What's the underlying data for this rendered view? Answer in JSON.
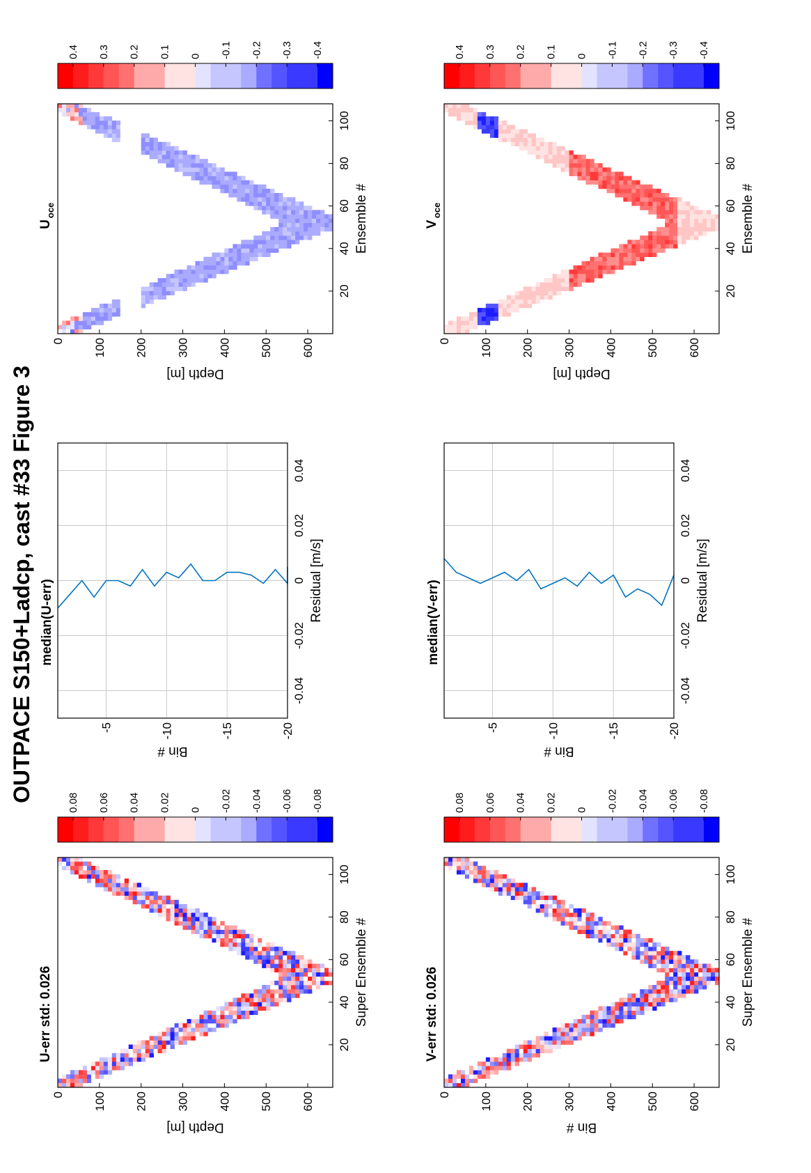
{
  "figure": {
    "title": "OUTPACE S150+Ladcp, cast #33  Figure 3"
  },
  "colors": {
    "red": "#ff0000",
    "blue": "#0000ff",
    "line": "#0072bd",
    "grid": "#c8c8c8"
  },
  "chart_data": [
    {
      "id": "u-err",
      "type": "heatmap",
      "title": "U-err std: 0.026",
      "xlabel": "Super Ensemble #",
      "ylabel": "Depth [m]",
      "xlim": [
        0,
        108
      ],
      "ylim": [
        0,
        660
      ],
      "xticks": [
        "20",
        "40",
        "60",
        "80",
        "100"
      ],
      "yticks": [
        "0",
        "100",
        "200",
        "300",
        "400",
        "500",
        "600"
      ],
      "colorbar": {
        "range": [
          -0.09,
          0.09
        ],
        "ticks": [
          "0.08",
          "0.06",
          "0.04",
          "0.02",
          "0",
          "-0.02",
          "-0.04",
          "-0.06",
          "-0.08"
        ]
      },
      "pattern": "V-shaped down/up cast, noisy residuals between -0.09 and 0.09"
    },
    {
      "id": "median-u",
      "type": "line",
      "title": "median(U-err)",
      "xlabel": "Residual [m/s]",
      "ylabel": "Bin #",
      "xlim": [
        -0.05,
        0.05
      ],
      "ylim": [
        -20,
        -1
      ],
      "xticks": [
        "-0.04",
        "-0.02",
        "0",
        "0.02",
        "0.04"
      ],
      "yticks": [
        "-5",
        "-10",
        "-15",
        "-20"
      ],
      "series": [
        {
          "x": [
            -0.01,
            -0.005,
            0.0,
            -0.006,
            0.0,
            0.0,
            -0.002,
            0.004,
            -0.002,
            0.003,
            0.001,
            0.006,
            0.0,
            0.0,
            0.003,
            0.003,
            0.002,
            -0.001,
            0.004,
            -0.001,
            0.005
          ],
          "y": [
            -1,
            -2,
            -3,
            -4,
            -5,
            -6,
            -7,
            -8,
            -9,
            -10,
            -11,
            -12,
            -13,
            -14,
            -15,
            -16,
            -17,
            -18,
            -19,
            -20,
            -21
          ]
        }
      ]
    },
    {
      "id": "u-oce",
      "type": "heatmap",
      "title": "U",
      "title_sub": "oce",
      "xlabel": "Ensemble #",
      "ylabel": "Depth [m]",
      "xlim": [
        0,
        108
      ],
      "ylim": [
        0,
        660
      ],
      "xticks": [
        "20",
        "40",
        "60",
        "80",
        "100"
      ],
      "yticks": [
        "0",
        "100",
        "200",
        "300",
        "400",
        "500",
        "600"
      ],
      "colorbar": {
        "range": [
          -0.45,
          0.45
        ],
        "ticks": [
          "0.4",
          "0.3",
          "0.2",
          "0.1",
          "0",
          "-0.1",
          "-0.2",
          "-0.3",
          "-0.4"
        ]
      },
      "pattern": "V-shaped cast, mostly weak negative (blue) velocities"
    },
    {
      "id": "v-err",
      "type": "heatmap",
      "title": "V-err std: 0.026",
      "xlabel": "Super Ensemble #",
      "ylabel": "Bin #",
      "xlim": [
        0,
        108
      ],
      "ylim": [
        0,
        660
      ],
      "xticks": [
        "20",
        "40",
        "60",
        "80",
        "100"
      ],
      "yticks": [
        "0",
        "100",
        "200",
        "300",
        "400",
        "500",
        "600"
      ],
      "colorbar": {
        "range": [
          -0.09,
          0.09
        ],
        "ticks": [
          "0.08",
          "0.06",
          "0.04",
          "0.02",
          "0",
          "-0.02",
          "-0.04",
          "-0.06",
          "-0.08"
        ]
      },
      "pattern": "V-shaped down/up cast, noisy residuals between -0.09 and 0.09"
    },
    {
      "id": "median-v",
      "type": "line",
      "title": "median(V-err)",
      "xlabel": "Residual [m/s]",
      "ylabel": "Bin #",
      "xlim": [
        -0.05,
        0.05
      ],
      "ylim": [
        -20,
        -1
      ],
      "xticks": [
        "-0.04",
        "-0.02",
        "0",
        "0.02",
        "0.04"
      ],
      "yticks": [
        "-5",
        "-10",
        "-15",
        "-20"
      ],
      "series": [
        {
          "x": [
            0.008,
            0.003,
            0.001,
            -0.001,
            0.001,
            0.003,
            0.0,
            0.004,
            -0.003,
            -0.001,
            0.001,
            -0.002,
            0.003,
            -0.001,
            0.002,
            -0.006,
            -0.003,
            -0.005,
            -0.009,
            0.002
          ],
          "y": [
            -1,
            -2,
            -3,
            -4,
            -5,
            -6,
            -7,
            -8,
            -9,
            -10,
            -11,
            -12,
            -13,
            -14,
            -15,
            -16,
            -17,
            -18,
            -19,
            -20
          ]
        }
      ]
    },
    {
      "id": "v-oce",
      "type": "heatmap",
      "title": "V",
      "title_sub": "oce",
      "xlabel": "Ensemble #",
      "ylabel": "Depth [m]",
      "xlim": [
        0,
        108
      ],
      "ylim": [
        0,
        660
      ],
      "xticks": [
        "20",
        "40",
        "60",
        "80",
        "100"
      ],
      "yticks": [
        "0",
        "100",
        "200",
        "300",
        "400",
        "500",
        "600"
      ],
      "colorbar": {
        "range": [
          -0.45,
          0.45
        ],
        "ticks": [
          "0.4",
          "0.3",
          "0.2",
          "0.1",
          "0",
          "-0.1",
          "-0.2",
          "-0.3",
          "-0.4"
        ]
      },
      "pattern": "V-shaped cast, positive (red) velocities 300-550 m, negative near 100 m"
    }
  ]
}
